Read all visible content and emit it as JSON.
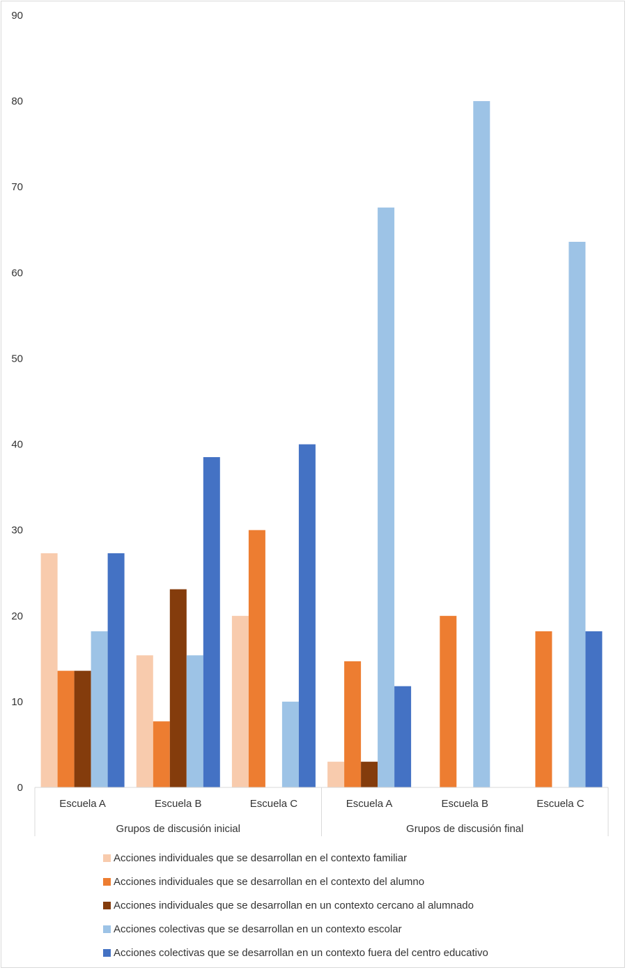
{
  "chart_data": {
    "type": "bar",
    "ylim": [
      0,
      90
    ],
    "yticks": [
      0,
      10,
      20,
      30,
      40,
      50,
      60,
      70,
      80,
      90
    ],
    "grid": false,
    "legend_position": "bottom",
    "groups": [
      {
        "label": "Grupos de discusión inicial",
        "categories": [
          "Escuela A",
          "Escuela B",
          "Escuela C"
        ]
      },
      {
        "label": "Grupos de discusión final",
        "categories": [
          "Escuela A",
          "Escuela B",
          "Escuela C"
        ]
      }
    ],
    "series": [
      {
        "name": "Acciones individuales que se desarrollan en el contexto familiar",
        "color": "#f8cbad",
        "values": [
          27.3,
          15.4,
          20.0,
          3.0,
          0,
          0
        ]
      },
      {
        "name": "Acciones individuales que se desarrollan en el contexto del alumno",
        "color": "#ed7d31",
        "values": [
          13.6,
          7.7,
          30.0,
          14.7,
          20.0,
          18.2
        ]
      },
      {
        "name": "Acciones individuales que se desarrollan en un contexto cercano al alumnado",
        "color": "#843c0c",
        "values": [
          13.6,
          23.1,
          0,
          3.0,
          0,
          0
        ]
      },
      {
        "name": "Acciones colectivas que se desarrollan en un contexto escolar",
        "color": "#9dc3e6",
        "values": [
          18.2,
          15.4,
          10.0,
          67.6,
          80.0,
          63.6
        ]
      },
      {
        "name": "Acciones colectivas que se desarrollan en un contexto fuera del centro educativo",
        "color": "#4472c4",
        "values": [
          27.3,
          38.5,
          40.0,
          11.8,
          0,
          18.2
        ]
      }
    ]
  }
}
